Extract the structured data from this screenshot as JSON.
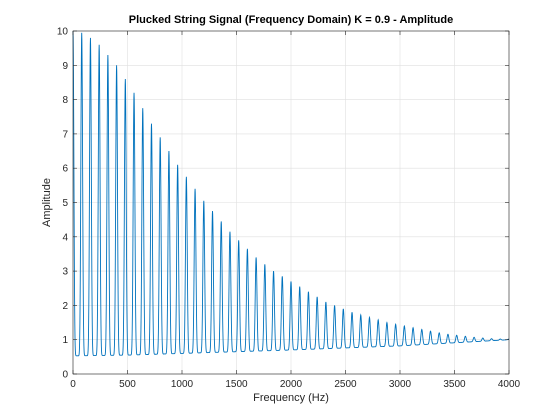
{
  "chart_data": {
    "type": "line",
    "title": "Plucked String Signal (Frequency Domain) K = 0.9 - Amplitude",
    "xlabel": "Frequency (Hz)",
    "ylabel": "Amplitude",
    "xlim": [
      0,
      4000
    ],
    "ylim": [
      0,
      10
    ],
    "xticks": [
      0,
      500,
      1000,
      1500,
      2000,
      2500,
      3000,
      3500,
      4000
    ],
    "yticks": [
      0,
      1,
      2,
      3,
      4,
      5,
      6,
      7,
      8,
      9,
      10
    ],
    "grid": true,
    "series": [
      {
        "color": "#0072bd",
        "fundamental_hz": 80,
        "harmonic_peaks": {
          "x": [
            0,
            80,
            160,
            240,
            320,
            400,
            480,
            560,
            640,
            720,
            800,
            880,
            960,
            1040,
            1120,
            1200,
            1280,
            1360,
            1440,
            1520,
            1600,
            1680,
            1760,
            1840,
            1920,
            2000,
            2080,
            2160,
            2240,
            2320,
            2400,
            2480,
            2560,
            2640,
            2720,
            2800,
            2880,
            2960,
            3040,
            3120,
            3200,
            3280,
            3360,
            3440,
            3520,
            3600,
            3680,
            3760,
            3840,
            3920,
            4000
          ],
          "y": [
            10,
            9.95,
            9.8,
            9.6,
            9.3,
            9.0,
            8.6,
            8.2,
            7.75,
            7.3,
            6.9,
            6.5,
            6.1,
            5.75,
            5.4,
            5.05,
            4.75,
            4.45,
            4.15,
            3.9,
            3.65,
            3.4,
            3.2,
            3.0,
            2.85,
            2.7,
            2.55,
            2.4,
            2.25,
            2.1,
            2.0,
            1.9,
            1.8,
            1.72,
            1.65,
            1.58,
            1.5,
            1.45,
            1.4,
            1.35,
            1.3,
            1.25,
            1.2,
            1.16,
            1.13,
            1.1,
            1.07,
            1.05,
            1.03,
            1.02,
            1.02
          ]
        },
        "trough_minima": {
          "x": [
            40,
            500,
            1000,
            2000,
            3000,
            4000
          ],
          "y": [
            0.53,
            0.55,
            0.6,
            0.7,
            0.82,
            1.0
          ]
        }
      }
    ]
  }
}
